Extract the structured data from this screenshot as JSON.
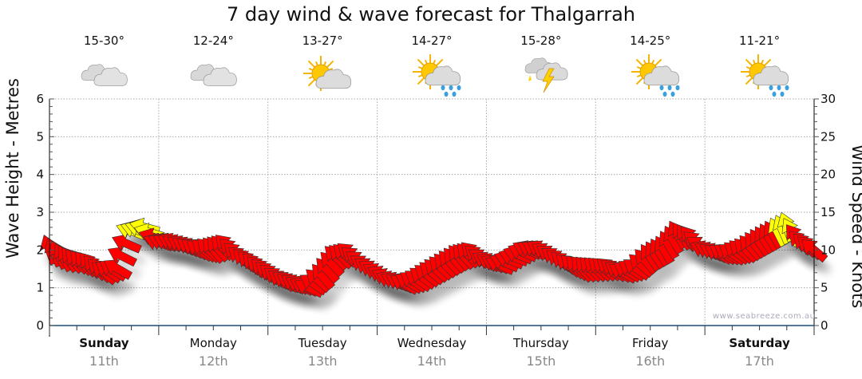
{
  "title": "7 day wind & wave forecast for Thalgarrah",
  "watermark": "www.seabreeze.com.au",
  "days": [
    {
      "name": "Sunday",
      "date": "11th",
      "temp": "15-30°",
      "icon": "cloudy-icon",
      "bold": true
    },
    {
      "name": "Monday",
      "date": "12th",
      "temp": "12-24°",
      "icon": "cloudy-icon",
      "bold": false
    },
    {
      "name": "Tuesday",
      "date": "13th",
      "temp": "13-27°",
      "icon": "partly-sunny-icon",
      "bold": false
    },
    {
      "name": "Wednesday",
      "date": "14th",
      "temp": "14-27°",
      "icon": "sun-shower-icon",
      "bold": false
    },
    {
      "name": "Thursday",
      "date": "15th",
      "temp": "15-28°",
      "icon": "thunderstorm-icon",
      "bold": false
    },
    {
      "name": "Friday",
      "date": "16th",
      "temp": "14-25°",
      "icon": "sun-shower-icon",
      "bold": false
    },
    {
      "name": "Saturday",
      "date": "17th",
      "temp": "11-21°",
      "icon": "sun-shower-icon",
      "bold": true
    }
  ],
  "colors": {
    "wind": "#ff0000",
    "wind_strong": "#ffff00",
    "axis": "#1a4f7a",
    "grid": "#aaaaaa"
  },
  "chart_data": {
    "type": "scatter",
    "title": "7 day wind & wave forecast for Thalgarrah",
    "ylabel_left": "Wave Height - Metres",
    "ylabel_right": "Wind Speed - Knots",
    "ylim_left": [
      0,
      6
    ],
    "ylim_right": [
      0,
      30
    ],
    "yticks_left": [
      "0",
      "1",
      "2",
      "3",
      "4",
      "5",
      "6"
    ],
    "yticks_right": [
      "0",
      "5",
      "10",
      "15",
      "20",
      "25",
      "30"
    ],
    "grid": true,
    "interval_hours": 3,
    "wind_knots": [
      10,
      9,
      8.5,
      8,
      7,
      7.5,
      12.5,
      13,
      11,
      11,
      10.5,
      10,
      10,
      10.5,
      9,
      8,
      7,
      6,
      5.5,
      5,
      6.5,
      9,
      9.5,
      8,
      7,
      6,
      5.5,
      6,
      7,
      8,
      9,
      9.5,
      8.5,
      8,
      9,
      10,
      10,
      9,
      8,
      7.5,
      7.5,
      7.5,
      7,
      7.5,
      9,
      10,
      12,
      11.5,
      10,
      9.5,
      9.5,
      10,
      11,
      12,
      13,
      11,
      10
    ],
    "wind_from_deg": [
      160,
      150,
      135,
      140,
      130,
      120,
      110,
      105,
      110,
      115,
      120,
      125,
      140,
      135,
      130,
      135,
      130,
      125,
      120,
      115,
      140,
      135,
      130,
      125,
      120,
      115,
      120,
      125,
      130,
      135,
      140,
      135,
      120,
      115,
      110,
      115,
      120,
      125,
      130,
      140,
      135,
      130,
      120,
      125,
      145,
      150,
      150,
      140,
      115,
      120,
      125,
      135,
      145,
      150,
      160,
      135,
      130
    ]
  }
}
